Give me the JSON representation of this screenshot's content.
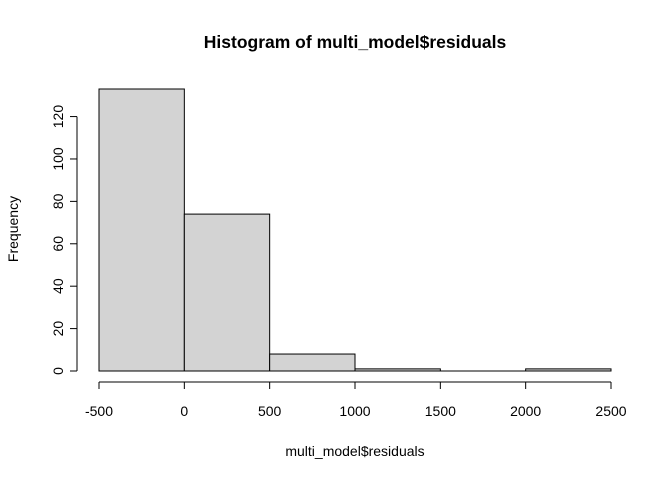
{
  "chart_data": {
    "type": "bar",
    "title": "Histogram of multi_model$residuals",
    "xlabel": "multi_model$residuals",
    "ylabel": "Frequency",
    "bins": [
      {
        "start": -500,
        "end": 0,
        "count": 133
      },
      {
        "start": 0,
        "end": 500,
        "count": 74
      },
      {
        "start": 500,
        "end": 1000,
        "count": 8
      },
      {
        "start": 1000,
        "end": 1500,
        "count": 1
      },
      {
        "start": 1500,
        "end": 2000,
        "count": 0
      },
      {
        "start": 2000,
        "end": 2500,
        "count": 1
      }
    ],
    "xlim": [
      -500,
      2500
    ],
    "ylim": [
      0,
      133
    ],
    "x_ticks": [
      -500,
      0,
      500,
      1000,
      1500,
      2000,
      2500
    ],
    "y_ticks": [
      0,
      20,
      40,
      60,
      80,
      100,
      120
    ],
    "grid": false,
    "legend": "none",
    "colors": {
      "bar_fill": "#d3d3d3",
      "bar_stroke": "#000000",
      "axis": "#000000",
      "background": "#ffffff"
    }
  }
}
